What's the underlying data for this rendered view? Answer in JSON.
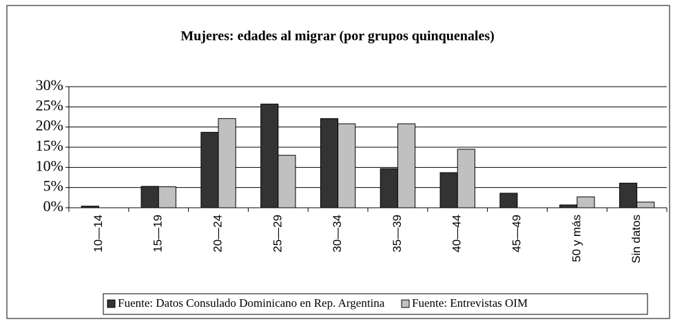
{
  "chart_data": {
    "type": "bar",
    "title": "Mujeres: edades al migrar (por grupos quinquenales)",
    "categories": [
      "10—14",
      "15—19",
      "20—24",
      "25—29",
      "30—34",
      "35—39",
      "40—44",
      "45—49",
      "50 y más",
      "Sin datos"
    ],
    "series": [
      {
        "name": "Fuente: Datos Consulado Dominicano en Rep. Argentina",
        "color": "#333333",
        "values": [
          0.4,
          5.3,
          18.7,
          25.7,
          22.1,
          9.7,
          8.7,
          3.6,
          0.7,
          6.1
        ]
      },
      {
        "name": "Fuente: Entrevistas OIM",
        "color": "#c0c0c0",
        "values": [
          0,
          5.2,
          22.1,
          13,
          20.8,
          20.8,
          14.5,
          0,
          2.7,
          1.4
        ]
      }
    ],
    "ylim": [
      0,
      30
    ],
    "yticks": [
      {
        "value": 0,
        "label": "0%"
      },
      {
        "value": 5,
        "label": "5%"
      },
      {
        "value": 10,
        "label": "10%"
      },
      {
        "value": 15,
        "label": "15%"
      },
      {
        "value": 20,
        "label": "20%"
      },
      {
        "value": 25,
        "label": "25%"
      },
      {
        "value": 30,
        "label": "30%"
      }
    ],
    "grid": true
  }
}
